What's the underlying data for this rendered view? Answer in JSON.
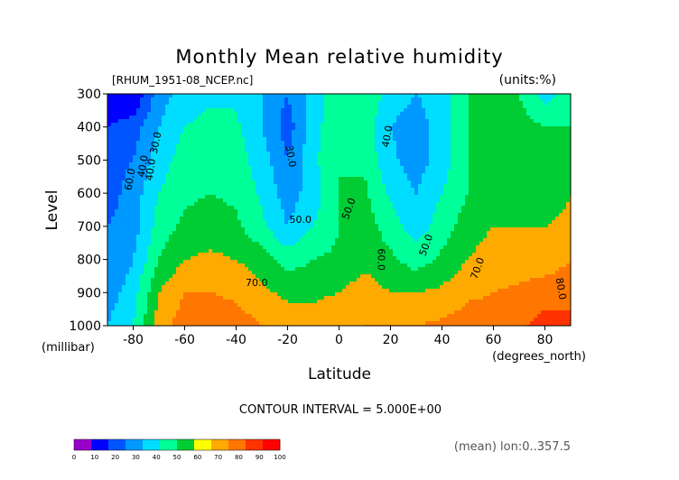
{
  "chart_data": {
    "type": "heatmap",
    "title": "Monthly Mean relative humidity",
    "subtitle_left": "[RHUM_1951-08_NCEP.nc]",
    "subtitle_right": "(units:%)",
    "xlabel": "Latitude",
    "x_unit_label": "(degrees_north)",
    "ylabel": "Level",
    "y_unit_label": "(millibar)",
    "xlim": [
      -90,
      90
    ],
    "ylim": [
      1000,
      300
    ],
    "x_ticks": [
      "-80",
      "-60",
      "-40",
      "-20",
      "0",
      "20",
      "40",
      "60",
      "80"
    ],
    "y_ticks": [
      "300",
      "400",
      "500",
      "600",
      "700",
      "800",
      "900",
      "1000"
    ],
    "contour_interval_label": "CONTOUR INTERVAL = 5.000E+00",
    "averaging_label": "(mean) lon:0..357.5",
    "contour_labels": [
      "30.0",
      "30.0",
      "40.0",
      "40.0",
      "40.0",
      "50.0",
      "50.0",
      "50.0",
      "60.0",
      "60.0",
      "70.0",
      "70.0",
      "80.0"
    ],
    "colorbar": {
      "ticks": [
        "0",
        "10",
        "20",
        "30",
        "40",
        "50",
        "60",
        "70",
        "80",
        "90",
        "100"
      ],
      "colors": [
        "#9900cc",
        "#0000ff",
        "#0055ff",
        "#0099ff",
        "#00ddff",
        "#00ff99",
        "#00cc33",
        "#ffff00",
        "#ffaa00",
        "#ff7700",
        "#ff3300",
        "#ff0000"
      ]
    },
    "grid_lat": [
      -90,
      -80,
      -70,
      -60,
      -50,
      -40,
      -30,
      -20,
      -10,
      0,
      10,
      20,
      30,
      40,
      50,
      60,
      70,
      80,
      90
    ],
    "grid_lev": [
      300,
      400,
      500,
      600,
      700,
      800,
      900,
      1000
    ],
    "rh": [
      [
        10,
        10,
        35,
        45,
        48,
        48,
        40,
        30,
        45,
        55,
        60,
        45,
        40,
        45,
        60,
        65,
        60,
        45,
        55
      ],
      [
        20,
        25,
        40,
        50,
        53,
        52,
        40,
        25,
        45,
        60,
        55,
        40,
        35,
        45,
        60,
        65,
        65,
        60,
        60
      ],
      [
        25,
        30,
        45,
        55,
        57,
        55,
        45,
        30,
        48,
        60,
        58,
        42,
        35,
        45,
        60,
        65,
        65,
        65,
        65
      ],
      [
        25,
        35,
        50,
        58,
        60,
        58,
        48,
        35,
        45,
        60,
        62,
        48,
        40,
        50,
        60,
        65,
        65,
        65,
        70
      ],
      [
        30,
        35,
        55,
        62,
        65,
        62,
        52,
        40,
        50,
        60,
        65,
        55,
        45,
        55,
        65,
        70,
        70,
        70,
        72
      ],
      [
        30,
        40,
        60,
        70,
        72,
        70,
        65,
        55,
        60,
        62,
        67,
        62,
        55,
        62,
        70,
        75,
        75,
        75,
        80
      ],
      [
        35,
        45,
        70,
        80,
        80,
        78,
        72,
        68,
        68,
        70,
        75,
        70,
        70,
        72,
        78,
        80,
        82,
        85,
        85
      ],
      [
        40,
        50,
        75,
        85,
        87,
        85,
        80,
        75,
        75,
        77,
        80,
        80,
        80,
        82,
        85,
        85,
        88,
        95,
        95
      ]
    ]
  }
}
